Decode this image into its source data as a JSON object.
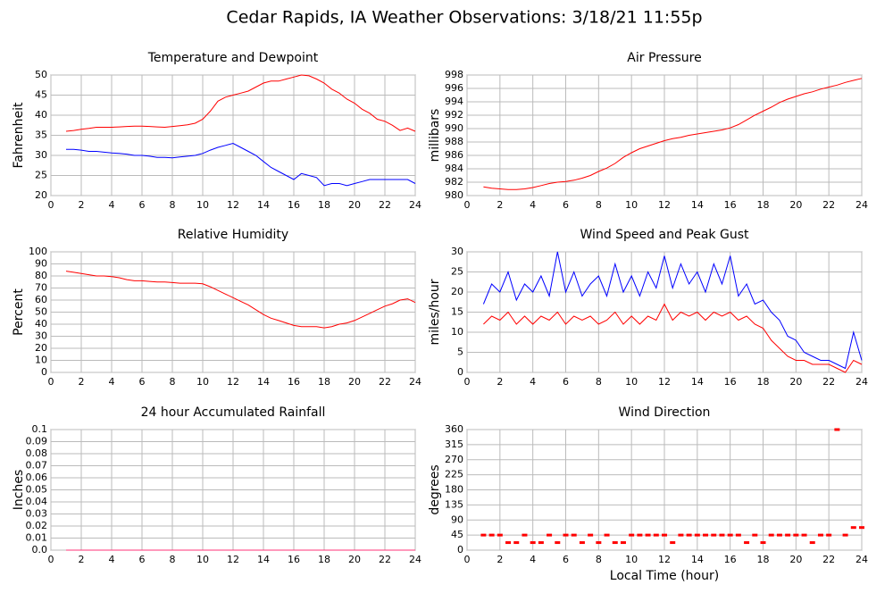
{
  "title": "Cedar Rapids, IA Weather Observations: 3/18/21 11:55p",
  "chart_data": [
    {
      "type": "line",
      "title": "Temperature and Dewpoint",
      "ylabel": "Fahrenheit",
      "xlim": [
        0,
        24
      ],
      "xticks": [
        0,
        2,
        4,
        6,
        8,
        10,
        12,
        14,
        16,
        18,
        20,
        22,
        24
      ],
      "ylim": [
        20,
        50
      ],
      "yticks": [
        20,
        25,
        30,
        35,
        40,
        45,
        50
      ],
      "grid": true,
      "x": [
        1,
        1.5,
        2,
        2.5,
        3,
        3.5,
        4,
        4.5,
        5,
        5.5,
        6,
        6.5,
        7,
        7.5,
        8,
        8.5,
        9,
        9.5,
        10,
        10.5,
        11,
        11.5,
        12,
        12.5,
        13,
        13.5,
        14,
        14.5,
        15,
        15.5,
        16,
        16.5,
        17,
        17.5,
        18,
        18.5,
        19,
        19.5,
        20,
        20.5,
        21,
        21.5,
        22,
        22.5,
        23,
        23.5,
        24
      ],
      "series": [
        {
          "color": "#ff0000",
          "values": [
            36,
            36.2,
            36.5,
            36.7,
            37,
            37,
            37,
            37.1,
            37.2,
            37.3,
            37.3,
            37.2,
            37.1,
            37,
            37.2,
            37.4,
            37.6,
            38,
            39,
            41,
            43.5,
            44.5,
            45,
            45.5,
            46,
            47,
            48,
            48.5,
            48.5,
            49,
            49.5,
            50,
            49.8,
            49,
            48,
            46.5,
            45.5,
            44,
            43,
            41.5,
            40.5,
            39,
            38.5,
            37.5,
            36.2,
            36.8,
            36
          ]
        },
        {
          "color": "#0000ff",
          "values": [
            31.5,
            31.5,
            31.3,
            31,
            31,
            30.8,
            30.6,
            30.5,
            30.3,
            30,
            30,
            29.8,
            29.5,
            29.5,
            29.4,
            29.6,
            29.8,
            30,
            30.5,
            31.3,
            32,
            32.5,
            33,
            32,
            31,
            30,
            28.5,
            27,
            26,
            25,
            24,
            25.5,
            25,
            24.5,
            22.5,
            23,
            23,
            22.5,
            23,
            23.5,
            24,
            24,
            24,
            24,
            24,
            24,
            23
          ]
        }
      ]
    },
    {
      "type": "line",
      "title": "Air Pressure",
      "ylabel": "millibars",
      "xlim": [
        0,
        24
      ],
      "xticks": [
        0,
        2,
        4,
        6,
        8,
        10,
        12,
        14,
        16,
        18,
        20,
        22,
        24
      ],
      "ylim": [
        980,
        998
      ],
      "yticks": [
        980,
        982,
        984,
        986,
        988,
        990,
        992,
        994,
        996,
        998
      ],
      "grid": true,
      "x": [
        1,
        1.5,
        2,
        2.5,
        3,
        3.5,
        4,
        4.5,
        5,
        5.5,
        6,
        6.5,
        7,
        7.5,
        8,
        8.5,
        9,
        9.5,
        10,
        10.5,
        11,
        11.5,
        12,
        12.5,
        13,
        13.5,
        14,
        14.5,
        15,
        15.5,
        16,
        16.5,
        17,
        17.5,
        18,
        18.5,
        19,
        19.5,
        20,
        20.5,
        21,
        21.5,
        22,
        22.5,
        23,
        23.5,
        24
      ],
      "series": [
        {
          "color": "#ff0000",
          "values": [
            981.3,
            981.1,
            981,
            980.9,
            980.9,
            981,
            981.2,
            981.5,
            981.8,
            982,
            982.1,
            982.3,
            982.6,
            983,
            983.6,
            984.1,
            984.8,
            985.7,
            986.4,
            987,
            987.4,
            987.8,
            988.2,
            988.5,
            988.7,
            989,
            989.2,
            989.4,
            989.6,
            989.8,
            990.1,
            990.6,
            991.3,
            992,
            992.6,
            993.2,
            993.9,
            994.4,
            994.8,
            995.2,
            995.5,
            995.9,
            996.2,
            996.5,
            996.9,
            997.2,
            997.5
          ]
        }
      ]
    },
    {
      "type": "line",
      "title": "Relative Humidity",
      "ylabel": "Percent",
      "xlim": [
        0,
        24
      ],
      "xticks": [
        0,
        2,
        4,
        6,
        8,
        10,
        12,
        14,
        16,
        18,
        20,
        22,
        24
      ],
      "ylim": [
        0,
        100
      ],
      "yticks": [
        0,
        10,
        20,
        30,
        40,
        50,
        60,
        70,
        80,
        90,
        100
      ],
      "grid": true,
      "x": [
        1,
        1.5,
        2,
        2.5,
        3,
        3.5,
        4,
        4.5,
        5,
        5.5,
        6,
        6.5,
        7,
        7.5,
        8,
        8.5,
        9,
        9.5,
        10,
        10.5,
        11,
        11.5,
        12,
        12.5,
        13,
        13.5,
        14,
        14.5,
        15,
        15.5,
        16,
        16.5,
        17,
        17.5,
        18,
        18.5,
        19,
        19.5,
        20,
        20.5,
        21,
        21.5,
        22,
        22.5,
        23,
        23.5,
        24
      ],
      "series": [
        {
          "color": "#ff0000",
          "values": [
            84,
            83,
            82,
            81,
            80,
            80,
            79.5,
            78.5,
            77,
            76,
            76,
            75.5,
            75,
            75,
            74.5,
            74,
            74,
            74,
            73.5,
            71,
            68,
            65,
            62,
            59,
            56,
            52,
            48,
            45,
            43,
            41,
            39,
            38,
            38,
            38,
            37,
            38,
            40,
            41,
            43,
            46,
            49,
            52,
            55,
            57,
            60,
            61,
            58
          ]
        }
      ]
    },
    {
      "type": "line",
      "title": "Wind Speed and Peak Gust",
      "ylabel": "miles/hour",
      "xlim": [
        0,
        24
      ],
      "xticks": [
        0,
        2,
        4,
        6,
        8,
        10,
        12,
        14,
        16,
        18,
        20,
        22,
        24
      ],
      "ylim": [
        0,
        30
      ],
      "yticks": [
        0,
        5,
        10,
        15,
        20,
        25,
        30
      ],
      "grid": true,
      "x": [
        1,
        1.5,
        2,
        2.5,
        3,
        3.5,
        4,
        4.5,
        5,
        5.5,
        6,
        6.5,
        7,
        7.5,
        8,
        8.5,
        9,
        9.5,
        10,
        10.5,
        11,
        11.5,
        12,
        12.5,
        13,
        13.5,
        14,
        14.5,
        15,
        15.5,
        16,
        16.5,
        17,
        17.5,
        18,
        18.5,
        19,
        19.5,
        20,
        20.5,
        21,
        21.5,
        22,
        22.5,
        23,
        23.5,
        24
      ],
      "series": [
        {
          "color": "#0000ff",
          "values": [
            17,
            22,
            20,
            25,
            18,
            22,
            20,
            24,
            19,
            30,
            20,
            25,
            19,
            22,
            24,
            19,
            27,
            20,
            24,
            19,
            25,
            21,
            29,
            21,
            27,
            22,
            25,
            20,
            27,
            22,
            29,
            19,
            22,
            17,
            18,
            15,
            13,
            9,
            8,
            5,
            4,
            3,
            3,
            2,
            1,
            10,
            3
          ]
        },
        {
          "color": "#ff0000",
          "values": [
            12,
            14,
            13,
            15,
            12,
            14,
            12,
            14,
            13,
            15,
            12,
            14,
            13,
            14,
            12,
            13,
            15,
            12,
            14,
            12,
            14,
            13,
            17,
            13,
            15,
            14,
            15,
            13,
            15,
            14,
            15,
            13,
            14,
            12,
            11,
            8,
            6,
            4,
            3,
            3,
            2,
            2,
            2,
            1,
            0,
            3,
            2
          ]
        }
      ]
    },
    {
      "type": "line",
      "title": "24 hour Accumulated Rainfall",
      "ylabel": "Inches",
      "xlim": [
        0,
        24
      ],
      "xticks": [
        0,
        2,
        4,
        6,
        8,
        10,
        12,
        14,
        16,
        18,
        20,
        22,
        24
      ],
      "ylim": [
        0,
        0.1
      ],
      "yticks": [
        {
          "value": 0,
          "label": "0.0"
        },
        0.01,
        0.02,
        0.03,
        0.04,
        0.05,
        0.06,
        0.07,
        0.08,
        0.09,
        0.1
      ],
      "grid": true,
      "x": [
        1,
        24
      ],
      "series": [
        {
          "color": "#ff3377",
          "values": [
            0,
            0
          ]
        }
      ]
    },
    {
      "type": "scatter",
      "title": "Wind Direction",
      "ylabel": "degrees",
      "xlabel": "Local Time (hour)",
      "xlim": [
        0,
        24
      ],
      "xticks": [
        0,
        2,
        4,
        6,
        8,
        10,
        12,
        14,
        16,
        18,
        20,
        22,
        24
      ],
      "ylim": [
        0,
        360
      ],
      "yticks": [
        0,
        45,
        90,
        135,
        180,
        225,
        270,
        315,
        360
      ],
      "grid": true,
      "color": "#ff0000",
      "x": [
        1,
        1.5,
        2,
        2.5,
        3,
        3.5,
        4,
        4.5,
        5,
        5.5,
        6,
        6.5,
        7,
        7.5,
        8,
        8.5,
        9,
        9.5,
        10,
        10.5,
        11,
        11.5,
        12,
        12.5,
        13,
        13.5,
        14,
        14.5,
        15,
        15.5,
        16,
        16.5,
        17,
        17.5,
        18,
        18.5,
        19,
        19.5,
        20,
        20.5,
        21,
        21.5,
        22,
        22.5,
        23,
        23.5,
        24
      ],
      "values": [
        45,
        45,
        45,
        22.5,
        22.5,
        45,
        22.5,
        22.5,
        45,
        22.5,
        45,
        45,
        22.5,
        45,
        22.5,
        45,
        22.5,
        22.5,
        45,
        45,
        45,
        45,
        45,
        22.5,
        45,
        45,
        45,
        45,
        45,
        45,
        45,
        45,
        22.5,
        45,
        22.5,
        45,
        45,
        45,
        45,
        45,
        22.5,
        45,
        45,
        360,
        45,
        67.5,
        67.5
      ]
    }
  ]
}
